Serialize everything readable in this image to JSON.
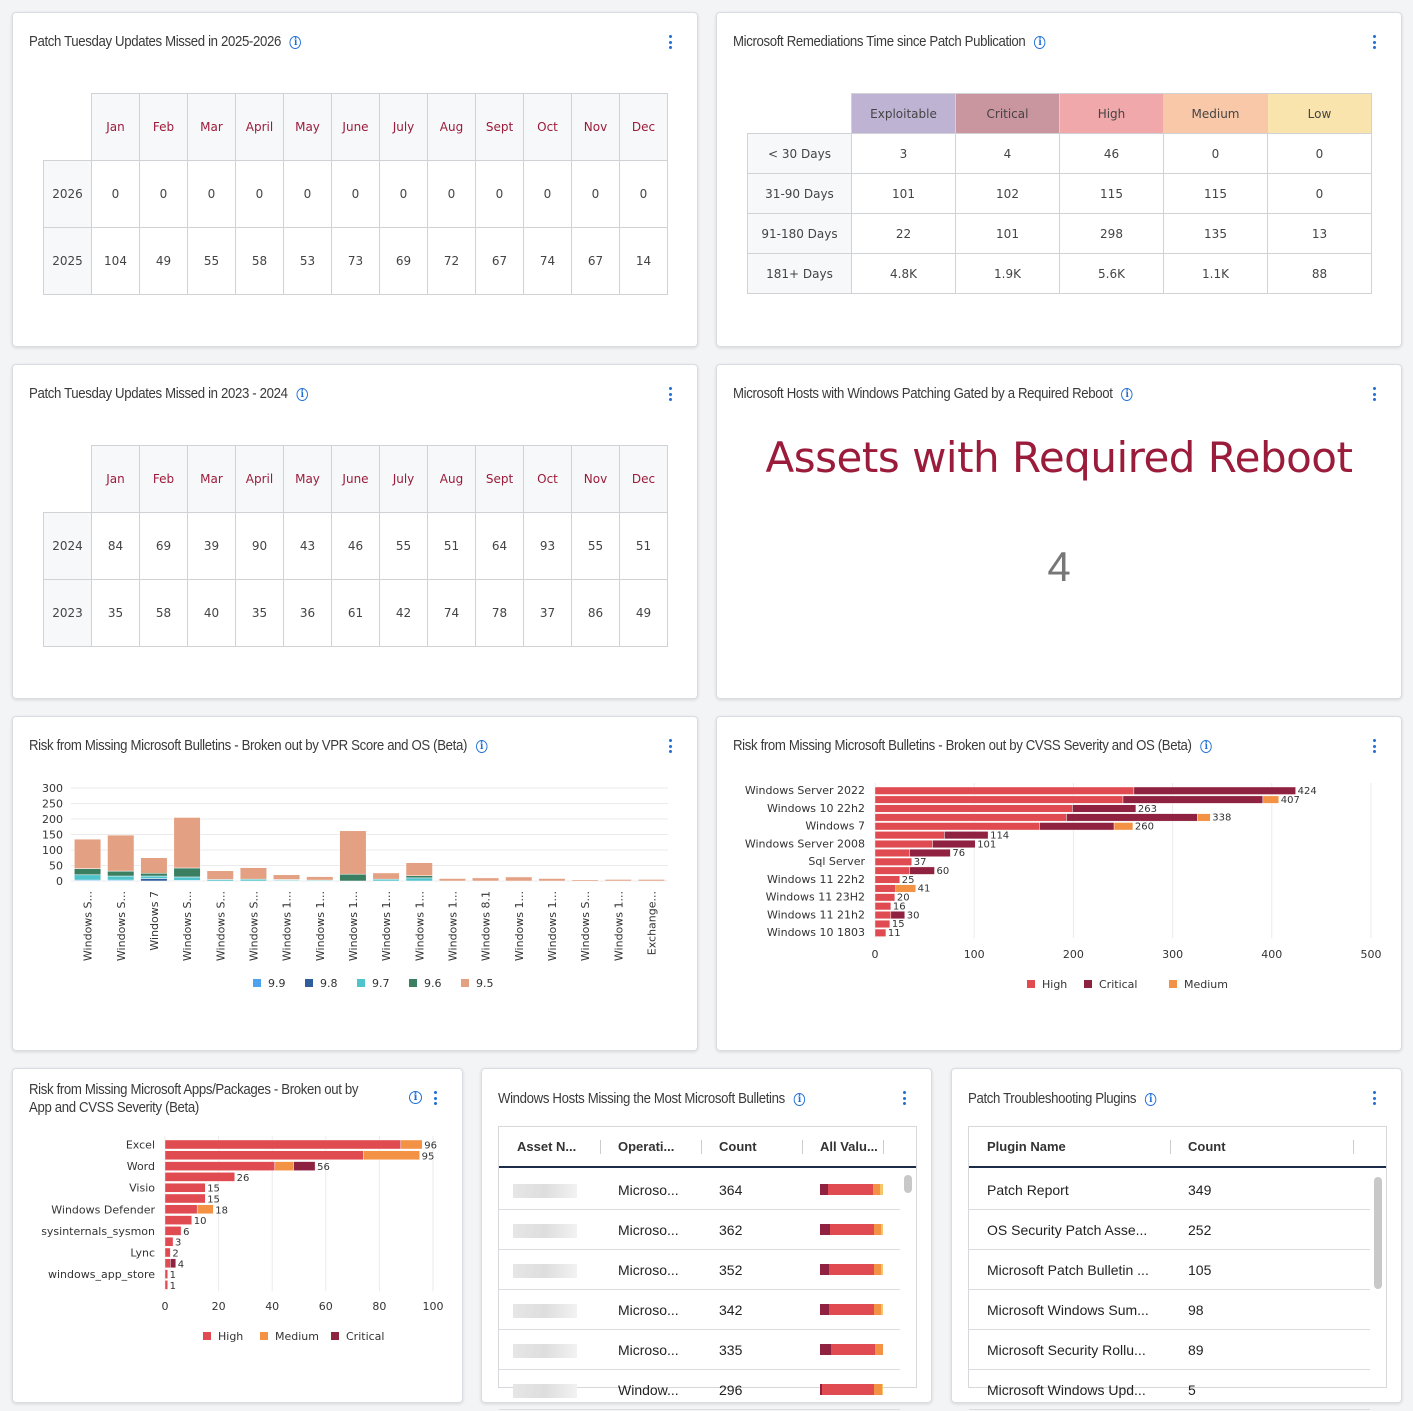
{
  "colors": {
    "accent": "#1f6fd6",
    "month": "#9b1b3a",
    "high": "#e04b52",
    "critical": "#8e2240",
    "medium": "#f39244",
    "exploitable": "#bfb3d3",
    "critical_hdr": "#c9959f",
    "high_hdr": "#f0a8ab",
    "medium_hdr": "#f8c8a8",
    "low_hdr": "#fae4ae",
    "reboot": "#9b1b3a"
  },
  "icons": {
    "info": "info-circle-icon",
    "menu": "kebab-menu-icon"
  },
  "patch_2526": {
    "title": "Patch Tuesday Updates Missed in 2025-2026",
    "months": [
      "Jan",
      "Feb",
      "Mar",
      "April",
      "May",
      "June",
      "July",
      "Aug",
      "Sept",
      "Oct",
      "Nov",
      "Dec"
    ],
    "rows": [
      {
        "label": "2026",
        "values": [
          "0",
          "0",
          "0",
          "0",
          "0",
          "0",
          "0",
          "0",
          "0",
          "0",
          "0",
          "0"
        ]
      },
      {
        "label": "2025",
        "values": [
          "104",
          "49",
          "55",
          "58",
          "53",
          "73",
          "69",
          "72",
          "67",
          "74",
          "67",
          "14"
        ]
      }
    ]
  },
  "remediation": {
    "title": "Microsoft Remediations Time since Patch Publication",
    "columns": [
      "Exploitable",
      "Critical",
      "High",
      "Medium",
      "Low"
    ],
    "rows": [
      {
        "label": "< 30 Days",
        "values": [
          "3",
          "4",
          "46",
          "0",
          "0"
        ]
      },
      {
        "label": "31-90 Days",
        "values": [
          "101",
          "102",
          "115",
          "115",
          "0"
        ]
      },
      {
        "label": "91-180 Days",
        "values": [
          "22",
          "101",
          "298",
          "135",
          "13"
        ]
      },
      {
        "label": "181+ Days",
        "values": [
          "4.8K",
          "1.9K",
          "5.6K",
          "1.1K",
          "88"
        ]
      }
    ]
  },
  "patch_2324": {
    "title": "Patch Tuesday Updates Missed in 2023 - 2024",
    "months": [
      "Jan",
      "Feb",
      "Mar",
      "April",
      "May",
      "June",
      "July",
      "Aug",
      "Sept",
      "Oct",
      "Nov",
      "Dec"
    ],
    "rows": [
      {
        "label": "2024",
        "values": [
          "84",
          "69",
          "39",
          "90",
          "43",
          "46",
          "55",
          "51",
          "64",
          "93",
          "55",
          "51"
        ]
      },
      {
        "label": "2023",
        "values": [
          "35",
          "58",
          "40",
          "35",
          "36",
          "61",
          "42",
          "74",
          "78",
          "37",
          "86",
          "49"
        ]
      }
    ]
  },
  "reboot": {
    "title": "Microsoft Hosts with Windows Patching Gated by a Required Reboot",
    "headline": "Assets with Required Reboot",
    "value": "4"
  },
  "vpr": {
    "title": "Risk from Missing Microsoft Bulletins - Broken out by VPR Score and OS (Beta)"
  },
  "cvss": {
    "title": "Risk from Missing Microsoft Bulletins - Broken out by CVSS Severity and OS (Beta)"
  },
  "apps": {
    "title_line1": "Risk from Missing Microsoft Apps/Packages - Broken out by",
    "title_line2": "App and CVSS Severity (Beta)"
  },
  "hosts": {
    "title": "Windows Hosts Missing the Most Microsoft Bulletins",
    "columns": [
      "Asset N...",
      "Operati...",
      "Count",
      "All Valu..."
    ],
    "rows": [
      {
        "os": "Microso...",
        "count": "364",
        "bar": [
          0.12,
          0.72,
          0.12,
          0.04
        ]
      },
      {
        "os": "Microso...",
        "count": "362",
        "bar": [
          0.16,
          0.7,
          0.11,
          0.03
        ]
      },
      {
        "os": "Microso...",
        "count": "352",
        "bar": [
          0.15,
          0.71,
          0.11,
          0.03
        ]
      },
      {
        "os": "Microso...",
        "count": "342",
        "bar": [
          0.15,
          0.7,
          0.12,
          0.03
        ]
      },
      {
        "os": "Microso...",
        "count": "335",
        "bar": [
          0.17,
          0.71,
          0.12,
          0.0
        ]
      },
      {
        "os": "Window...",
        "count": "296",
        "bar": [
          0.03,
          0.83,
          0.12,
          0.02
        ]
      }
    ]
  },
  "plugins": {
    "title": "Patch Troubleshooting Plugins",
    "columns": [
      "Plugin Name",
      "Count"
    ],
    "rows": [
      {
        "name": "Patch Report",
        "count": "349"
      },
      {
        "name": "OS Security Patch Asse...",
        "count": "252"
      },
      {
        "name": "Microsoft Patch Bulletin ...",
        "count": "105"
      },
      {
        "name": "Microsoft Windows Sum...",
        "count": "98"
      },
      {
        "name": "Microsoft Security Rollu...",
        "count": "89"
      },
      {
        "name": "Microsoft Windows Upd...",
        "count": "5"
      }
    ]
  },
  "chart_data": [
    {
      "type": "bar",
      "stacked": true,
      "orientation": "vertical",
      "categories": [
        "Windows S...",
        "Windows S...",
        "Windows 7",
        "Windows S...",
        "Windows S...",
        "Windows S...",
        "Windows 1...",
        "Windows 1...",
        "Windows 1...",
        "Windows 1...",
        "Windows 1...",
        "Windows 1...",
        "Windows 8.1",
        "Windows 1...",
        "Windows 1...",
        "Windows S...",
        "Windows 1...",
        "Exchange..."
      ],
      "series": [
        {
          "name": "9.9",
          "color": "#4da3f0",
          "values": [
            3,
            3,
            0,
            2,
            0,
            0,
            0,
            0,
            0,
            0,
            0,
            0,
            0,
            0,
            0,
            0,
            0,
            0
          ]
        },
        {
          "name": "9.8",
          "color": "#2f5d9e",
          "values": [
            0,
            0,
            8,
            0,
            0,
            0,
            0,
            0,
            0,
            0,
            0,
            0,
            0,
            0,
            0,
            0,
            0,
            0
          ]
        },
        {
          "name": "9.7",
          "color": "#4fc4cc",
          "values": [
            17,
            13,
            8,
            11,
            5,
            6,
            3,
            3,
            0,
            6,
            10,
            0,
            0,
            0,
            0,
            0,
            0,
            0
          ]
        },
        {
          "name": "9.6",
          "color": "#3a7f62",
          "values": [
            20,
            16,
            9,
            29,
            0,
            0,
            2,
            0,
            22,
            0,
            7,
            0,
            0,
            0,
            0,
            0,
            0,
            0
          ]
        },
        {
          "name": "9.5",
          "color": "#e4a083",
          "values": [
            95,
            116,
            50,
            163,
            28,
            37,
            15,
            11,
            140,
            20,
            42,
            8,
            10,
            13,
            8,
            4,
            5,
            5
          ]
        }
      ],
      "yticks": [
        0,
        50,
        100,
        150,
        200,
        250,
        300
      ],
      "ylim": [
        0,
        300
      ],
      "grid": true,
      "legend": "bottom"
    },
    {
      "type": "bar",
      "stacked": true,
      "orientation": "horizontal",
      "categories": [
        "Windows Server 2022",
        "",
        "Windows 10 22h2",
        "",
        "Windows 7",
        "",
        "Windows Server 2008",
        "",
        "Sql Server",
        "",
        "Windows 11 22h2",
        "",
        "Windows 11 23H2",
        "",
        "Windows 11 21h2",
        "",
        "Windows 10 1803"
      ],
      "totals": [
        424,
        407,
        263,
        338,
        260,
        114,
        101,
        76,
        37,
        60,
        25,
        41,
        20,
        16,
        30,
        15,
        11
      ],
      "series": [
        {
          "name": "High",
          "color": "#e04b52",
          "values": [
            261,
            250,
            199,
            193,
            166,
            70,
            58,
            35,
            37,
            35,
            25,
            21,
            20,
            16,
            16,
            15,
            11
          ]
        },
        {
          "name": "Critical",
          "color": "#8e2240",
          "values": [
            163,
            141,
            64,
            132,
            75,
            44,
            43,
            41,
            0,
            25,
            0,
            0,
            0,
            0,
            14,
            0,
            0
          ]
        },
        {
          "name": "Medium",
          "color": "#f39244",
          "values": [
            0,
            16,
            0,
            13,
            19,
            0,
            0,
            0,
            0,
            0,
            0,
            20,
            0,
            0,
            0,
            0,
            0
          ]
        }
      ],
      "xticks": [
        0,
        100,
        200,
        300,
        400,
        500
      ],
      "xlim": [
        0,
        500
      ],
      "grid": true,
      "legend": "bottom"
    },
    {
      "type": "bar",
      "stacked": true,
      "orientation": "horizontal",
      "categories": [
        "Excel",
        "",
        "Word",
        "",
        "Visio",
        "",
        "Windows Defender",
        "",
        "sysinternals_sysmon",
        "",
        "Lync",
        "",
        "windows_app_store",
        ""
      ],
      "totals": [
        96,
        95,
        56,
        26,
        15,
        15,
        18,
        10,
        6,
        3,
        2,
        4,
        1,
        1
      ],
      "series": [
        {
          "name": "High",
          "color": "#e04b52",
          "values": [
            88,
            74,
            41,
            26,
            15,
            15,
            12,
            10,
            6,
            3,
            2,
            2,
            1,
            1
          ]
        },
        {
          "name": "Medium",
          "color": "#f39244",
          "values": [
            8,
            21,
            7,
            0,
            0,
            0,
            6,
            0,
            0,
            0,
            0,
            0,
            0,
            0
          ]
        },
        {
          "name": "Critical",
          "color": "#8e2240",
          "values": [
            0,
            0,
            8,
            0,
            0,
            0,
            0,
            0,
            0,
            0,
            0,
            2,
            0,
            0
          ]
        }
      ],
      "xticks": [
        0,
        20,
        40,
        60,
        80,
        100
      ],
      "xlim": [
        0,
        100
      ],
      "grid": true,
      "legend": "bottom"
    }
  ]
}
